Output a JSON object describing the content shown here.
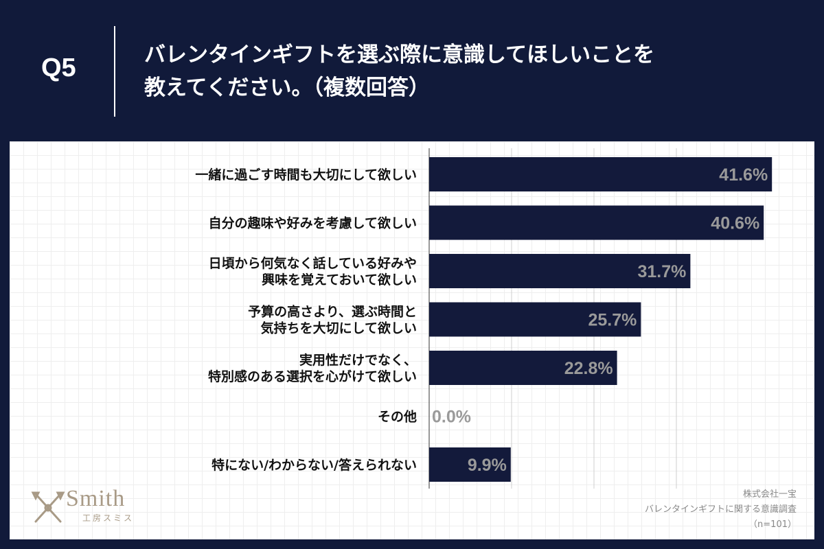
{
  "question": {
    "number": "Q5",
    "line1": "バレンタインギフトを選ぶ際に意識してほしいことを",
    "line2": "教えてください。（複数回答）"
  },
  "brand": {
    "name": "Smith",
    "sub": "工房スミス"
  },
  "credit": {
    "company": "株式会社一宝",
    "survey": "バレンタインギフトに関する意識調査",
    "sample": "（n=101）"
  },
  "colors": {
    "header_bg": "#111a3a",
    "bar": "#131a3b",
    "value_label": "#9a9a9a",
    "logo": "#a89a86"
  },
  "chart_data": {
    "type": "bar",
    "orientation": "horizontal",
    "categories": [
      [
        "一緒に過ごす時間も大切にして欲しい"
      ],
      [
        "自分の趣味や好みを考慮して欲しい"
      ],
      [
        "日頃から何気なく話している好みや",
        "興味を覚えておいて欲しい"
      ],
      [
        "予算の高さより、選ぶ時間と",
        "気持ちを大切にして欲しい"
      ],
      [
        "実用性だけでなく、",
        "特別感のある選択を心がけて欲しい"
      ],
      [
        "その他"
      ],
      [
        "特にない/わからない/答えられない"
      ]
    ],
    "values": [
      41.6,
      40.6,
      31.7,
      25.7,
      22.8,
      0.0,
      9.9
    ],
    "labels": [
      "41.6%",
      "40.6%",
      "31.7%",
      "25.7%",
      "22.8%",
      "0.0%",
      "9.9%"
    ],
    "xlim": [
      0,
      40
    ],
    "gridlines": [
      10,
      20,
      30
    ],
    "legend": "none"
  }
}
